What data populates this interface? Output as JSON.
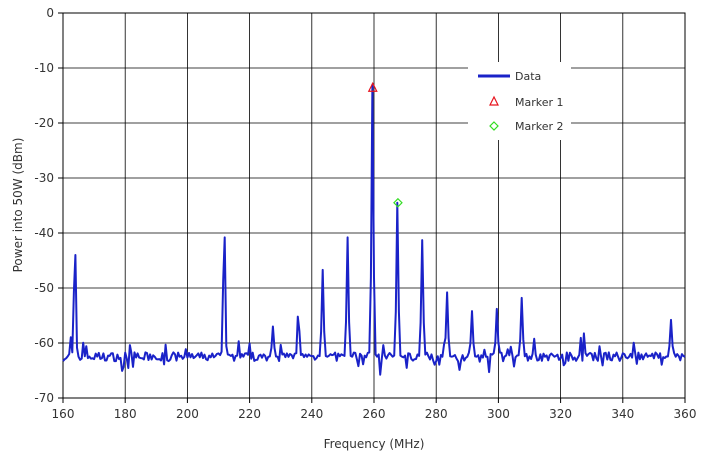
{
  "chart_data": {
    "type": "line",
    "xlabel": "Frequency (MHz)",
    "ylabel": "Power into 50W (dBm)",
    "xlim": [
      160,
      360
    ],
    "ylim": [
      -70,
      0
    ],
    "x_ticks": [
      "160",
      "180",
      "200",
      "220",
      "240",
      "260",
      "280",
      "300",
      "320",
      "340",
      "360"
    ],
    "y_ticks": [
      "0",
      "-10",
      "-20",
      "-30",
      "-40",
      "-50",
      "-60",
      "-70"
    ],
    "grid": true,
    "legend_position": "top-right",
    "series": [
      {
        "name": "Data",
        "color": "#1a22c8",
        "baseline": -62.5,
        "peaks": [
          {
            "x": 163.8,
            "y": -44.0
          },
          {
            "x": 211.8,
            "y": -40.8
          },
          {
            "x": 227.5,
            "y": -57.0
          },
          {
            "x": 235.7,
            "y": -55.2
          },
          {
            "x": 243.5,
            "y": -46.7
          },
          {
            "x": 251.5,
            "y": -40.8
          },
          {
            "x": 259.5,
            "y": -13.0
          },
          {
            "x": 267.5,
            "y": -34.5
          },
          {
            "x": 275.5,
            "y": -41.3
          },
          {
            "x": 283.5,
            "y": -50.8
          },
          {
            "x": 291.5,
            "y": -54.2
          },
          {
            "x": 299.5,
            "y": -53.8
          },
          {
            "x": 307.5,
            "y": -51.8
          },
          {
            "x": 355.5,
            "y": -55.8
          }
        ]
      },
      {
        "name": "Marker 1",
        "color": "#e8141e",
        "marker": "triangle",
        "points": [
          {
            "x": 259.6,
            "y": -13.5
          }
        ]
      },
      {
        "name": "Marker 2",
        "color": "#33dd22",
        "marker": "diamond",
        "points": [
          {
            "x": 267.7,
            "y": -34.5
          }
        ]
      }
    ]
  }
}
